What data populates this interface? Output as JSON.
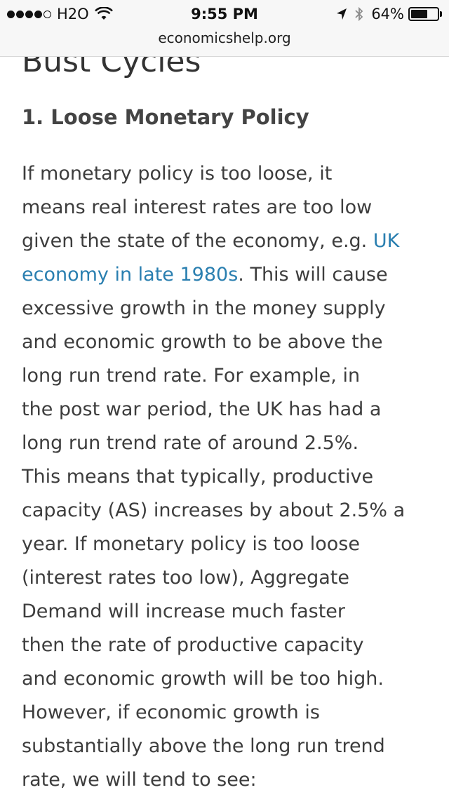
{
  "status_bar": {
    "carrier": "H2O",
    "time": "9:55 PM",
    "battery_percent": "64%",
    "battery_level": 0.64,
    "signal_bars_filled": 4,
    "signal_bars_total": 5
  },
  "browser": {
    "url": "economicshelp.org"
  },
  "article": {
    "previous_heading": "Bust Cycles",
    "section_heading": "1. Loose Monetary Policy",
    "paragraph_lines": {
      "l1": "If monetary policy is too loose, it",
      "l2": "means real interest rates are too low",
      "l3_text": "given the state of the economy, e.g. ",
      "l3_link": "UK",
      "l4_link": "economy in late 1980s",
      "l4_text": ". This will cause",
      "l5": "excessive growth in the money supply",
      "l6": "and economic growth to be above  the",
      "l7": "long run trend rate. For example, in",
      "l8": "the post war period, the UK has had a",
      "l9": "long run trend rate of around 2.5%.",
      "l10": "This means that typically, productive",
      "l11": "capacity (AS) increases by about 2.5% a",
      "l12": "year. If monetary policy is too loose",
      "l13": "(interest rates too low), Aggregate",
      "l14": "Demand  will increase much faster",
      "l15": "then the rate of productive capacity",
      "l16": "and economic growth will be too high.",
      "l17": "However, if economic growth is",
      "l18": "substantially above the long run trend",
      "l19": "rate, we will tend to see:"
    }
  },
  "colors": {
    "link": "#2a7fb0",
    "text": "#3d3d3d",
    "status_bar_bg": "#f7f7f7"
  }
}
